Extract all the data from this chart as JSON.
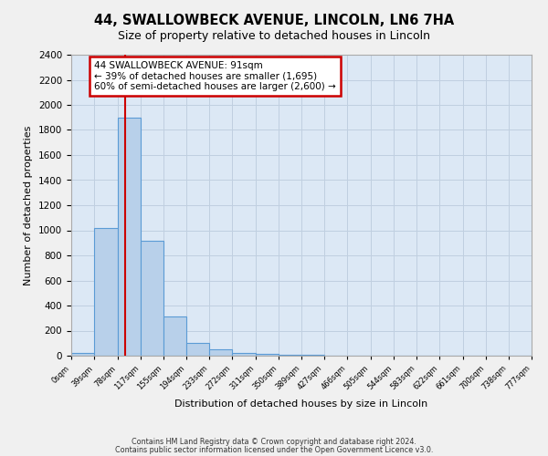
{
  "title": "44, SWALLOWBECK AVENUE, LINCOLN, LN6 7HA",
  "subtitle": "Size of property relative to detached houses in Lincoln",
  "xlabel": "Distribution of detached houses by size in Lincoln",
  "ylabel": "Number of detached properties",
  "footer_line1": "Contains HM Land Registry data © Crown copyright and database right 2024.",
  "footer_line2": "Contains public sector information licensed under the Open Government Licence v3.0.",
  "annotation_title": "44 SWALLOWBECK AVENUE: 91sqm",
  "annotation_line1": "← 39% of detached houses are smaller (1,695)",
  "annotation_line2": "60% of semi-detached houses are larger (2,600) →",
  "bar_edges": [
    0,
    39,
    78,
    117,
    155,
    194,
    233,
    272,
    311,
    350,
    389,
    427,
    466,
    505,
    544,
    583,
    622,
    661,
    700,
    738,
    777
  ],
  "bar_heights": [
    20,
    1020,
    1900,
    920,
    315,
    100,
    50,
    25,
    15,
    10,
    5,
    0,
    0,
    0,
    0,
    0,
    0,
    0,
    0,
    0
  ],
  "bar_color": "#b8d0ea",
  "bar_edge_color": "#5b9bd5",
  "bar_linewidth": 0.8,
  "red_line_x": 91,
  "red_line_color": "#cc0000",
  "grid_color": "#c0cfe0",
  "plot_bg_color": "#dce8f5",
  "fig_bg_color": "#f0f0f0",
  "ylim": [
    0,
    2400
  ],
  "yticks": [
    0,
    200,
    400,
    600,
    800,
    1000,
    1200,
    1400,
    1600,
    1800,
    2000,
    2200,
    2400
  ],
  "tick_labels": [
    "0sqm",
    "39sqm",
    "78sqm",
    "117sqm",
    "155sqm",
    "194sqm",
    "233sqm",
    "272sqm",
    "311sqm",
    "350sqm",
    "389sqm",
    "427sqm",
    "466sqm",
    "505sqm",
    "544sqm",
    "583sqm",
    "622sqm",
    "661sqm",
    "700sqm",
    "738sqm",
    "777sqm"
  ]
}
